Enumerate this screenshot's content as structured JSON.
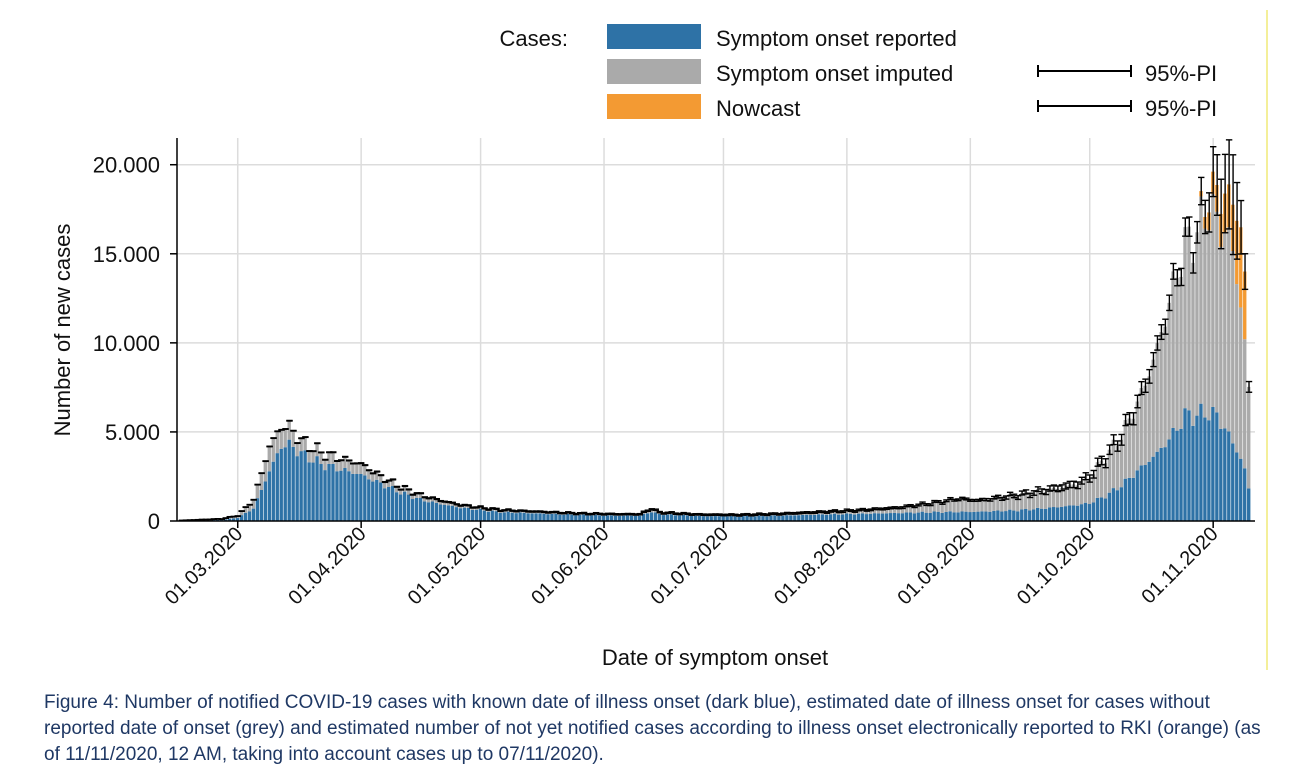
{
  "chart_data": {
    "type": "bar",
    "stacked": true,
    "xlabel": "Date of symptom onset",
    "ylabel": "Number of new cases",
    "ylim": [
      0,
      21500
    ],
    "grid": true,
    "y_ticks": [
      {
        "value": 0,
        "label": "0"
      },
      {
        "value": 5000,
        "label": "5.000"
      },
      {
        "value": 10000,
        "label": "10.000"
      },
      {
        "value": 15000,
        "label": "15.000"
      },
      {
        "value": 20000,
        "label": "20.000"
      }
    ],
    "x_ticks": [
      {
        "day": 14,
        "label": "01.03.2020"
      },
      {
        "day": 45,
        "label": "01.04.2020"
      },
      {
        "day": 75,
        "label": "01.05.2020"
      },
      {
        "day": 106,
        "label": "01.06.2020"
      },
      {
        "day": 136,
        "label": "01.07.2020"
      },
      {
        "day": 167,
        "label": "01.08.2020"
      },
      {
        "day": 198,
        "label": "01.09.2020"
      },
      {
        "day": 228,
        "label": "01.10.2020"
      },
      {
        "day": 259,
        "label": "01.11.2020"
      }
    ],
    "x_start": "16.02.2020",
    "x_end": "07.11.2020",
    "legend": {
      "position": "top",
      "title": "Cases:",
      "items": [
        {
          "label": "Symptom onset reported",
          "color": "#2e72a6"
        },
        {
          "label": "Symptom onset imputed",
          "color": "#aaaaaa",
          "pi_label": "95%-PI"
        },
        {
          "label": "Nowcast",
          "color": "#f39a33",
          "pi_label": "95%-PI"
        }
      ]
    },
    "series_colors": {
      "reported": "#2e72a6",
      "imputed": "#aaaaaa",
      "nowcast": "#f39a33",
      "interval": "#000000"
    },
    "series_keyframes": {
      "reported": [
        [
          0,
          20
        ],
        [
          10,
          60
        ],
        [
          14,
          180
        ],
        [
          18,
          700
        ],
        [
          22,
          2800
        ],
        [
          25,
          4200
        ],
        [
          27,
          4300
        ],
        [
          30,
          3800
        ],
        [
          35,
          3200
        ],
        [
          40,
          2900
        ],
        [
          45,
          2600
        ],
        [
          50,
          2100
        ],
        [
          55,
          1600
        ],
        [
          60,
          1200
        ],
        [
          65,
          950
        ],
        [
          70,
          750
        ],
        [
          75,
          620
        ],
        [
          80,
          500
        ],
        [
          90,
          420
        ],
        [
          100,
          340
        ],
        [
          110,
          300
        ],
        [
          115,
          300
        ],
        [
          118,
          520
        ],
        [
          120,
          380
        ],
        [
          130,
          280
        ],
        [
          140,
          260
        ],
        [
          150,
          300
        ],
        [
          160,
          360
        ],
        [
          170,
          400
        ],
        [
          180,
          450
        ],
        [
          190,
          500
        ],
        [
          200,
          520
        ],
        [
          210,
          600
        ],
        [
          215,
          680
        ],
        [
          220,
          780
        ],
        [
          225,
          900
        ],
        [
          228,
          1000
        ],
        [
          232,
          1400
        ],
        [
          236,
          2000
        ],
        [
          240,
          2800
        ],
        [
          245,
          3800
        ],
        [
          248,
          4600
        ],
        [
          250,
          5200
        ],
        [
          252,
          5950
        ],
        [
          254,
          5900
        ],
        [
          256,
          6000
        ],
        [
          258,
          6100
        ],
        [
          260,
          5900
        ],
        [
          262,
          5200
        ],
        [
          264,
          4400
        ],
        [
          266,
          3500
        ],
        [
          267,
          2900
        ],
        [
          268,
          1800
        ]
      ],
      "totalMid": [
        [
          0,
          30
        ],
        [
          10,
          120
        ],
        [
          14,
          300
        ],
        [
          18,
          1200
        ],
        [
          22,
          4200
        ],
        [
          25,
          5300
        ],
        [
          27,
          5300
        ],
        [
          30,
          4500
        ],
        [
          35,
          3850
        ],
        [
          40,
          3500
        ],
        [
          45,
          3200
        ],
        [
          50,
          2500
        ],
        [
          55,
          1900
        ],
        [
          60,
          1450
        ],
        [
          65,
          1150
        ],
        [
          70,
          900
        ],
        [
          75,
          750
        ],
        [
          80,
          620
        ],
        [
          90,
          520
        ],
        [
          100,
          420
        ],
        [
          110,
          380
        ],
        [
          115,
          380
        ],
        [
          118,
          700
        ],
        [
          120,
          480
        ],
        [
          130,
          360
        ],
        [
          140,
          340
        ],
        [
          150,
          400
        ],
        [
          160,
          500
        ],
        [
          170,
          600
        ],
        [
          180,
          750
        ],
        [
          190,
          1050
        ],
        [
          195,
          1250
        ],
        [
          200,
          1150
        ],
        [
          205,
          1300
        ],
        [
          210,
          1450
        ],
        [
          215,
          1650
        ],
        [
          220,
          1850
        ],
        [
          225,
          2100
        ],
        [
          228,
          2500
        ],
        [
          232,
          3600
        ],
        [
          236,
          4800
        ],
        [
          240,
          6600
        ],
        [
          243,
          8300
        ],
        [
          246,
          10500
        ],
        [
          248,
          12300
        ],
        [
          250,
          14000
        ],
        [
          252,
          15500
        ],
        [
          254,
          16000
        ],
        [
          256,
          16600
        ],
        [
          258,
          17600
        ],
        [
          260,
          16800
        ],
        [
          262,
          16200
        ],
        [
          264,
          15300
        ],
        [
          266,
          12000
        ],
        [
          267,
          10000
        ],
        [
          268,
          7400
        ]
      ],
      "nowcast": [
        [
          0,
          0
        ],
        [
          255,
          0
        ],
        [
          256,
          300
        ],
        [
          258,
          1000
        ],
        [
          260,
          1500
        ],
        [
          262,
          2200
        ],
        [
          264,
          2600
        ],
        [
          266,
          4500
        ],
        [
          267,
          3800
        ],
        [
          268,
          0
        ]
      ],
      "err": [
        [
          0,
          10
        ],
        [
          200,
          50
        ],
        [
          228,
          200
        ],
        [
          240,
          350
        ],
        [
          250,
          450
        ],
        [
          255,
          600
        ],
        [
          258,
          1100
        ],
        [
          260,
          1700
        ],
        [
          262,
          2200
        ],
        [
          264,
          2800
        ],
        [
          266,
          1500
        ],
        [
          267,
          1000
        ],
        [
          268,
          300
        ]
      ]
    }
  },
  "caption": "Figure 4: Number of notified COVID-19 cases with known date of illness onset (dark blue), estimated date of illness onset for cases without reported date of onset (grey) and estimated number of not yet notified cases according to illness onset electronically reported to RKI (orange) (as of 11/11/2020, 12 AM, taking into account cases up to 07/11/2020)."
}
